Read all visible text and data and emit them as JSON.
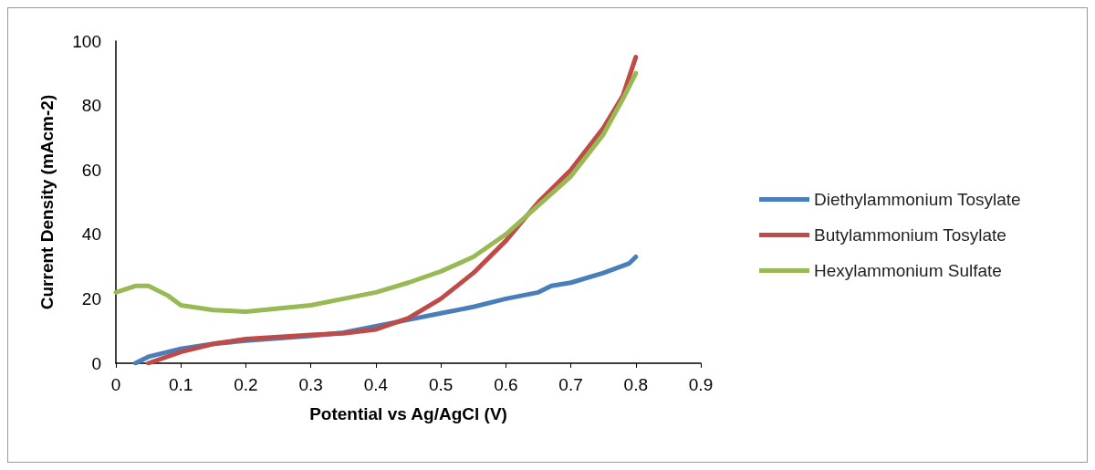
{
  "chart_data": {
    "type": "line",
    "xlabel": "Potential vs Ag/AgCl (V)",
    "ylabel": "Current Density (mAcm-2)",
    "xlim": [
      0,
      0.9
    ],
    "xticks": [
      0,
      0.1,
      0.2,
      0.3,
      0.4,
      0.5,
      0.6,
      0.7,
      0.8,
      0.9
    ],
    "ylim": [
      0,
      100
    ],
    "yticks": [
      0,
      20,
      40,
      60,
      80,
      100
    ],
    "grid": false,
    "legend": "right",
    "marker": "none",
    "line_style": "solid",
    "series": [
      {
        "name": "Diethylammonium Tosylate",
        "color": "#4a7ebb",
        "x": [
          0.03,
          0.05,
          0.1,
          0.15,
          0.2,
          0.3,
          0.35,
          0.4,
          0.45,
          0.5,
          0.55,
          0.6,
          0.65,
          0.67,
          0.7,
          0.75,
          0.79,
          0.8
        ],
        "values": [
          0,
          2,
          4.5,
          6,
          7,
          8.5,
          9.5,
          11.5,
          13.5,
          15.5,
          17.5,
          20,
          22,
          24,
          25,
          28,
          31,
          33
        ]
      },
      {
        "name": "Butylammonium Tosylate",
        "color": "#be4b48",
        "x": [
          0.05,
          0.1,
          0.15,
          0.2,
          0.3,
          0.35,
          0.4,
          0.45,
          0.5,
          0.55,
          0.6,
          0.65,
          0.7,
          0.75,
          0.78,
          0.8
        ],
        "values": [
          0,
          3.5,
          6,
          7.5,
          8.8,
          9.3,
          10.5,
          14,
          20,
          28,
          38,
          50,
          60,
          73,
          83,
          95
        ]
      },
      {
        "name": "Hexylammonium Sulfate",
        "color": "#98b954",
        "x": [
          0,
          0.03,
          0.05,
          0.08,
          0.1,
          0.15,
          0.2,
          0.25,
          0.3,
          0.35,
          0.4,
          0.45,
          0.5,
          0.55,
          0.6,
          0.65,
          0.7,
          0.75,
          0.78,
          0.8
        ],
        "values": [
          22,
          24,
          24,
          21,
          18,
          16.5,
          16,
          17,
          18,
          20,
          22,
          25,
          28.5,
          33,
          40,
          49,
          58,
          71,
          82,
          90
        ]
      }
    ]
  }
}
